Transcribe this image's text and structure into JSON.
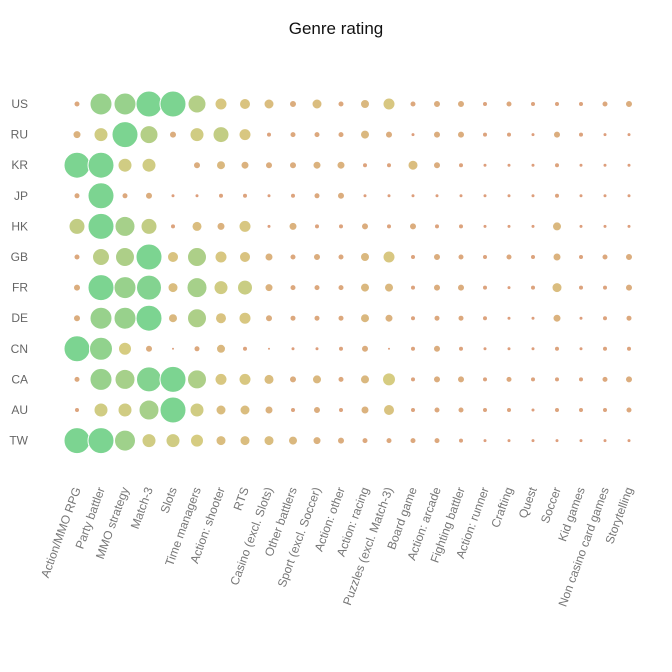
{
  "chart_data": {
    "type": "scatter",
    "subtype": "bubble-matrix",
    "title": "Genre rating",
    "xlabel": "",
    "ylabel": "",
    "grid": false,
    "legend": "none",
    "colors": {
      "low": "#d9936e",
      "mid": "#d4c673",
      "high": "#6ecf85"
    },
    "categories": [
      "Action/MMO RPG",
      "Party battler",
      "MMO strategy",
      "Match-3",
      "Slots",
      "Time managers",
      "Action: shooter",
      "RTS",
      "Casino (excl. Slots)",
      "Other battlers",
      "Sport (excl. Soccer)",
      "Action: other",
      "Action: racing",
      "Puzzles (excl. Match-3)",
      "Board game",
      "Action: arcade",
      "Fighting battler",
      "Action: runner",
      "Crafting",
      "Quest",
      "Soccer",
      "Kid games",
      "Non casino card games",
      "Storytelling"
    ],
    "series": [
      {
        "name": "US",
        "values": [
          3,
          11,
          11,
          13,
          13,
          9,
          6,
          5.5,
          5,
          3.5,
          5,
          3,
          4.5,
          6,
          3,
          3.5,
          3.5,
          2.5,
          3,
          2.5,
          2.5,
          2.5,
          3,
          3.5
        ]
      },
      {
        "name": "RU",
        "values": [
          4,
          7,
          13,
          9,
          3.5,
          7,
          8,
          6,
          2.5,
          3,
          3,
          3,
          4.5,
          3.5,
          2,
          3.5,
          3.5,
          2.5,
          2.5,
          2,
          3.5,
          2.5,
          2,
          2
        ]
      },
      {
        "name": "KR",
        "values": [
          13,
          13,
          7,
          7,
          0,
          3.5,
          4.5,
          4,
          3.5,
          3.5,
          4,
          4,
          2.5,
          2.5,
          5,
          3.5,
          2.5,
          2,
          2,
          2,
          2.5,
          2,
          2,
          2
        ]
      },
      {
        "name": "JP",
        "values": [
          3,
          13,
          3,
          3.5,
          2,
          2,
          2.5,
          2.5,
          2,
          2.5,
          3,
          3.5,
          2,
          2,
          2,
          2,
          2,
          2,
          2,
          2,
          2.5,
          2,
          2,
          2
        ]
      },
      {
        "name": "HK",
        "values": [
          8,
          13,
          10,
          8,
          2.5,
          5,
          4,
          6,
          2,
          4,
          2.5,
          2.5,
          3.5,
          2.5,
          3.5,
          2.5,
          2.5,
          2,
          2,
          2,
          4.5,
          2,
          2,
          2
        ]
      },
      {
        "name": "GB",
        "values": [
          3,
          8.5,
          9.5,
          13,
          5.5,
          9.5,
          6,
          5.5,
          4,
          3,
          3.5,
          3,
          4.5,
          6,
          2.5,
          3.5,
          3,
          2.5,
          3,
          2.5,
          4,
          2.5,
          3,
          3.5
        ]
      },
      {
        "name": "FR",
        "values": [
          3.5,
          13,
          11,
          12.5,
          5,
          10,
          7,
          7.5,
          4,
          3,
          3,
          3,
          4.5,
          4.5,
          2.5,
          3.5,
          3.5,
          2.5,
          2,
          2.5,
          5,
          2.5,
          2.5,
          3.5
        ]
      },
      {
        "name": "DE",
        "values": [
          3.5,
          11,
          11,
          13,
          4.5,
          9.5,
          5.5,
          6,
          3.5,
          3,
          3,
          3,
          4.5,
          4,
          2.5,
          3,
          3,
          2.5,
          2,
          2,
          4,
          2,
          2.5,
          3
        ]
      },
      {
        "name": "CN",
        "values": [
          13,
          11.5,
          6.5,
          3.5,
          1.5,
          3,
          4.5,
          2.5,
          1.5,
          2,
          2,
          2.5,
          3.5,
          1.5,
          2.5,
          3.5,
          2.5,
          2,
          2,
          2,
          2.5,
          2,
          2.5,
          2.5
        ]
      },
      {
        "name": "CA",
        "values": [
          3,
          11,
          10,
          12.5,
          13,
          9.5,
          6,
          6,
          5,
          3.5,
          4.5,
          3,
          4.5,
          6.5,
          2.5,
          3.5,
          3.5,
          2.5,
          3,
          2.5,
          2.5,
          2.5,
          3,
          3.5
        ]
      },
      {
        "name": "AU",
        "values": [
          2.5,
          7,
          7,
          10,
          13,
          7,
          5,
          5,
          4,
          2.5,
          3.5,
          2.5,
          4,
          5.5,
          2.5,
          3,
          3,
          2.5,
          2.5,
          2,
          2.5,
          2.5,
          2.5,
          3
        ]
      },
      {
        "name": "TW",
        "values": [
          13,
          13,
          10.5,
          7,
          7,
          6.5,
          5,
          5,
          5,
          4.5,
          4,
          3.5,
          3,
          3,
          3,
          3,
          2.5,
          2,
          2,
          2,
          2,
          2,
          2,
          2
        ]
      }
    ]
  }
}
